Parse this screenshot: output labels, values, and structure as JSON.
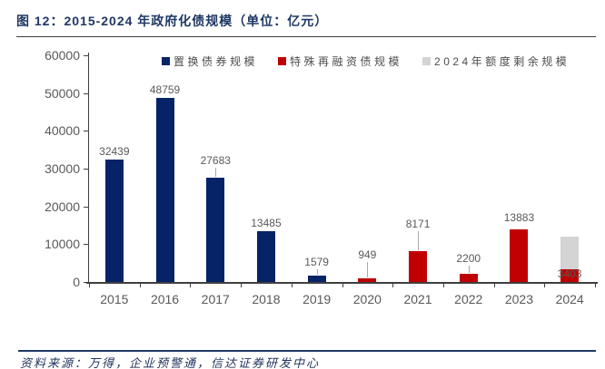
{
  "figure": {
    "title": "图 12：2015-2024 年政府化债规模（单位：亿元）",
    "source_note": "资料来源：万得，企业预警通，信达证券研发中心"
  },
  "colors": {
    "navy": "#052366",
    "red": "#c00000",
    "gray": "#d4d4d4",
    "axis": "#3f3f3f",
    "tick_label": "#595959",
    "title_navy": "#1f3864"
  },
  "chart_data": {
    "type": "bar",
    "stacked": true,
    "title": "图 12：2015-2024 年政府化债规模（单位：亿元）",
    "y_unit": "亿元",
    "categories": [
      "2015",
      "2016",
      "2017",
      "2018",
      "2019",
      "2020",
      "2021",
      "2022",
      "2023",
      "2024"
    ],
    "series": [
      {
        "name": "置换债券规模",
        "color": "#052366",
        "values": [
          32439,
          48759,
          27683,
          13485,
          1579,
          0,
          0,
          0,
          0,
          0
        ]
      },
      {
        "name": "特殊再融资债规模",
        "color": "#c00000",
        "values": [
          0,
          0,
          0,
          0,
          0,
          949,
          8171,
          2200,
          13883,
          3403
        ]
      },
      {
        "name": "2024年额度剩余规模",
        "color": "#d4d4d4",
        "values": [
          0,
          0,
          0,
          0,
          0,
          0,
          0,
          0,
          0,
          8597
        ]
      }
    ],
    "point_labels": [
      "32439",
      "48759",
      "27683",
      "13485",
      "1579",
      "949",
      "8171",
      "2200",
      "13883",
      "3403"
    ],
    "ylim": [
      0,
      60000
    ],
    "yticks": [
      0,
      10000,
      20000,
      30000,
      40000,
      50000,
      60000
    ],
    "grid": false,
    "legend_position": "top",
    "label_layout": {
      "gaps": [
        2,
        2,
        12,
        2,
        8,
        19,
        23,
        10,
        6,
        0
      ],
      "leaders": [
        false,
        false,
        true,
        false,
        true,
        true,
        true,
        true,
        false,
        false
      ],
      "last_label_inside_bottom": true
    }
  }
}
